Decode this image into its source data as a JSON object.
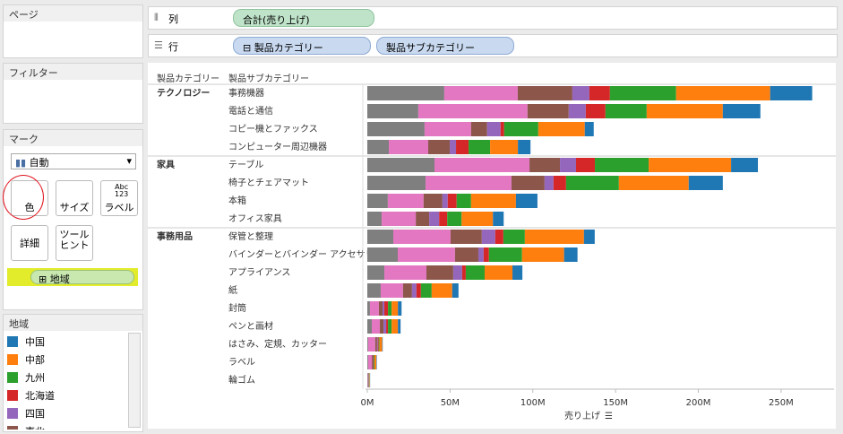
{
  "ui": {
    "pages_title": "ページ",
    "filters_title": "フィルター",
    "marks_title": "マーク",
    "mark_type": "自動",
    "mark_buttons": [
      "色",
      "サイズ",
      "ラベル",
      "詳細",
      "ツール\nヒント"
    ],
    "label_icon": "Abc\n123",
    "color_field": "地域",
    "columns_label": "列",
    "rows_label": "行",
    "columns_pill": "合計(売り上げ)",
    "rows_pills": [
      "製品カテゴリー",
      "製品サブカテゴリー"
    ],
    "header_labels": [
      "製品カテゴリー",
      "製品サブカテゴリー"
    ],
    "legend_title": "地域"
  },
  "chart_data": {
    "type": "stacked-barh",
    "row_groups": [
      "テクノロジー",
      null,
      null,
      null,
      "家具",
      null,
      null,
      null,
      "事務用品",
      null,
      null,
      null,
      null,
      null,
      null,
      null,
      null
    ],
    "categories": [
      "事務機器",
      "電話と通信",
      "コピー機とファックス",
      "コンピューター周辺機器",
      "テーブル",
      "椅子とチェアマット",
      "本箱",
      "オフィス家具",
      "保管と整理",
      "バインダーとバインダー アクセサリー",
      "アプライアンス",
      "紙",
      "封筒",
      "ペンと画材",
      "はさみ、定規、カッター",
      "ラベル",
      "輪ゴム"
    ],
    "series": [
      {
        "name": null,
        "color": "#7f7f7f",
        "values": [
          46.5,
          30.8,
          34.6,
          13,
          40.6,
          35.2,
          12.4,
          8.7,
          15.7,
          18.4,
          10.3,
          8.1,
          1.6,
          2.7,
          0.5,
          0.5,
          0.3
        ]
      },
      {
        "name": null,
        "color": "#e377c2",
        "values": [
          44.4,
          66,
          28.1,
          23.8,
          57.4,
          51.9,
          21.6,
          20.6,
          34.6,
          34.6,
          25.4,
          13.5,
          5.4,
          4.9,
          4.3,
          2.2,
          0.3
        ]
      },
      {
        "name": "東北",
        "color": "#8c564b",
        "values": [
          33,
          24.9,
          9.7,
          13,
          18.4,
          20,
          11.4,
          8.1,
          18.9,
          14.1,
          16.2,
          5.4,
          2.2,
          2.2,
          1.1,
          0.5,
          0.2
        ]
      },
      {
        "name": "四国",
        "color": "#9467bd",
        "values": [
          10.3,
          10.3,
          8.1,
          3.8,
          9.7,
          5.4,
          3.2,
          6,
          8.1,
          3.2,
          5.4,
          2.7,
          1.1,
          1.6,
          0.5,
          0.3,
          0.1
        ]
      },
      {
        "name": "北海道",
        "color": "#d62728",
        "values": [
          12.4,
          11.9,
          2.2,
          7.6,
          11.4,
          7.6,
          5.4,
          4.9,
          4.9,
          3.2,
          2.2,
          2.7,
          2.2,
          1.1,
          0.5,
          0.3,
          0.1
        ]
      },
      {
        "name": "九州",
        "color": "#2ca02c",
        "values": [
          40,
          24.9,
          20.6,
          13,
          32.5,
          31.9,
          8.7,
          8.7,
          13,
          20,
          11.4,
          6.5,
          2.2,
          2.2,
          0.5,
          0.5,
          0.2
        ]
      },
      {
        "name": "中部",
        "color": "#ff7f0e",
        "values": [
          56.8,
          46,
          28.1,
          16.8,
          49.8,
          42.2,
          27.1,
          18.9,
          35.7,
          25.4,
          16.8,
          12.4,
          3.8,
          3.8,
          1.6,
          1.1,
          0.3
        ]
      },
      {
        "name": "中国",
        "color": "#1f77b4",
        "values": [
          25.4,
          22.7,
          5.4,
          7.6,
          16.2,
          20.6,
          13,
          6.5,
          6.5,
          8.1,
          6,
          3.8,
          2.2,
          1.6,
          0.3,
          0.3,
          0.2
        ]
      }
    ],
    "xlim": [
      0,
      282
    ],
    "xticks": [
      {
        "value": 0,
        "label": "0M"
      },
      {
        "value": 50,
        "label": "50M"
      },
      {
        "value": 100,
        "label": "100M"
      },
      {
        "value": 150,
        "label": "150M"
      },
      {
        "value": 200,
        "label": "200M"
      },
      {
        "value": 250,
        "label": "250M"
      }
    ],
    "x_label": "売り上げ",
    "grid": false
  }
}
